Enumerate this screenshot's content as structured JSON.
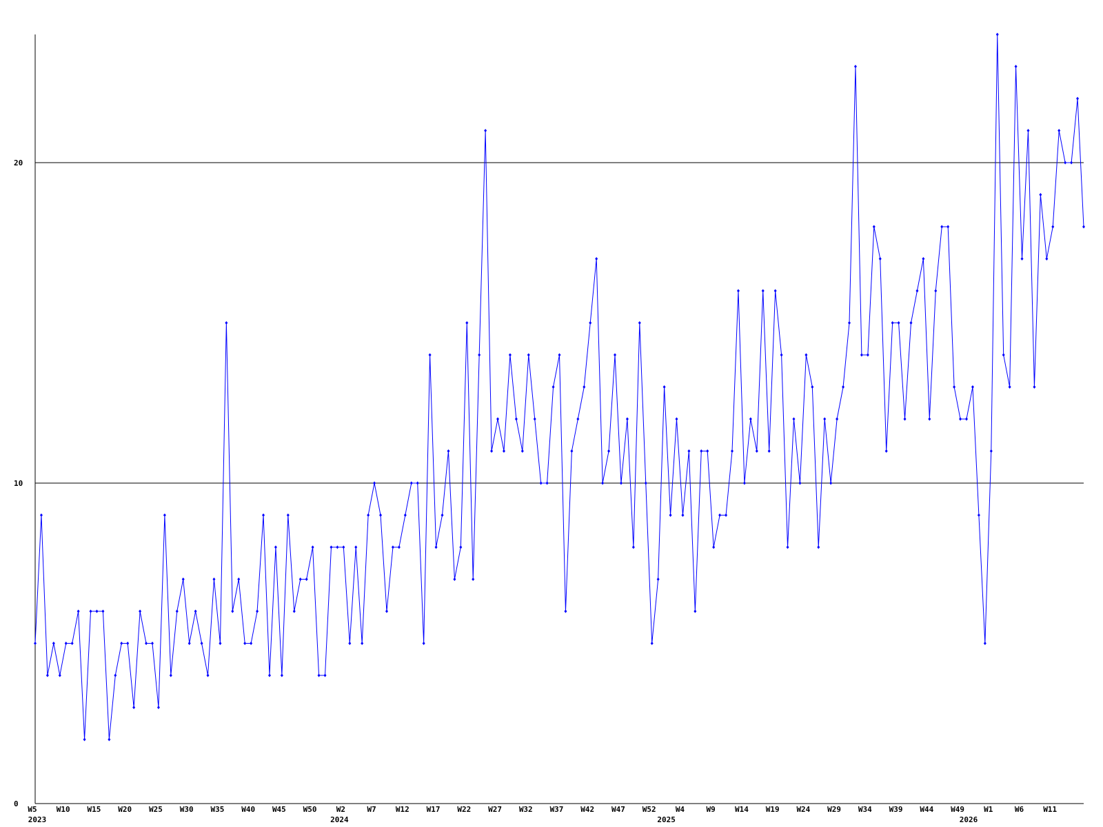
{
  "chart_data": {
    "type": "line",
    "categories": [
      "W5",
      null,
      null,
      null,
      null,
      "W10",
      null,
      null,
      null,
      null,
      "W15",
      null,
      null,
      null,
      null,
      "W20",
      null,
      null,
      null,
      null,
      "W25",
      null,
      null,
      null,
      null,
      "W30",
      null,
      null,
      null,
      null,
      "W35",
      null,
      null,
      null,
      null,
      "W40",
      null,
      null,
      null,
      null,
      "W45",
      null,
      null,
      null,
      null,
      "W50",
      null,
      null,
      null,
      null,
      "W2",
      null,
      null,
      null,
      null,
      "W7",
      null,
      null,
      null,
      null,
      "W12",
      null,
      null,
      null,
      null,
      "W17",
      null,
      null,
      null,
      null,
      "W22",
      null,
      null,
      null,
      null,
      "W27",
      null,
      null,
      null,
      null,
      "W32",
      null,
      null,
      null,
      null,
      "W37",
      null,
      null,
      null,
      null,
      "W42",
      null,
      null,
      null,
      null,
      "W47",
      null,
      null,
      null,
      null,
      "W52",
      null,
      null,
      null,
      null,
      "W4",
      null,
      null,
      null,
      null,
      "W9",
      null,
      null,
      null,
      null,
      "W14",
      null,
      null,
      null,
      null,
      "W19",
      null,
      null,
      null,
      null,
      "W24",
      null,
      null,
      null,
      null,
      "W29",
      null,
      null,
      null,
      null,
      "W34",
      null,
      null,
      null,
      null,
      "W39",
      null,
      null,
      null,
      null,
      "W44",
      null,
      null,
      null,
      null,
      "W49",
      null,
      null,
      null,
      null,
      "W1",
      null,
      null,
      null,
      null,
      "W6",
      null,
      null,
      null,
      null,
      "W11",
      null,
      null,
      null,
      null,
      null
    ],
    "year_labels": [
      "2023",
      null,
      null,
      null,
      null,
      null,
      null,
      null,
      null,
      null,
      null,
      null,
      null,
      null,
      null,
      null,
      null,
      null,
      null,
      null,
      null,
      null,
      null,
      null,
      null,
      null,
      null,
      null,
      null,
      null,
      null,
      null,
      null,
      null,
      null,
      null,
      null,
      null,
      null,
      null,
      null,
      null,
      null,
      null,
      null,
      null,
      null,
      null,
      null,
      "2024",
      null,
      null,
      null,
      null,
      null,
      null,
      null,
      null,
      null,
      null,
      null,
      null,
      null,
      null,
      null,
      null,
      null,
      null,
      null,
      null,
      null,
      null,
      null,
      null,
      null,
      null,
      null,
      null,
      null,
      null,
      null,
      null,
      null,
      null,
      null,
      null,
      null,
      null,
      null,
      null,
      null,
      null,
      null,
      null,
      null,
      null,
      null,
      null,
      null,
      null,
      null,
      null,
      "2025",
      null,
      null,
      null,
      null,
      null,
      null,
      null,
      null,
      null,
      null,
      null,
      null,
      null,
      null,
      null,
      null,
      null,
      null,
      null,
      null,
      null,
      null,
      null,
      null,
      null,
      null,
      null,
      null,
      null,
      null,
      null,
      null,
      null,
      null,
      null,
      null,
      null,
      null,
      null,
      null,
      null,
      null,
      null,
      null,
      null,
      null,
      null,
      null,
      "2026",
      null,
      null,
      null,
      null,
      null,
      null,
      null,
      null,
      null,
      null,
      null,
      null,
      null,
      null,
      null
    ],
    "series": [
      {
        "color": "#0000ff",
        "values": [
          5,
          9,
          4,
          5,
          4,
          5,
          5,
          6,
          2,
          6,
          6,
          6,
          2,
          4,
          5,
          5,
          3,
          6,
          5,
          5,
          3,
          9,
          4,
          6,
          7,
          5,
          6,
          5,
          4,
          7,
          5,
          15,
          6,
          7,
          5,
          5,
          6,
          9,
          4,
          8,
          4,
          9,
          6,
          7,
          7,
          8,
          4,
          4,
          8,
          8,
          8,
          5,
          8,
          5,
          9,
          10,
          9,
          6,
          8,
          8,
          9,
          10,
          10,
          5,
          14,
          8,
          9,
          11,
          7,
          8,
          15,
          7,
          14,
          21,
          11,
          12,
          11,
          14,
          12,
          11,
          14,
          12,
          10,
          10,
          13,
          14,
          6,
          11,
          12,
          13,
          15,
          17,
          10,
          11,
          14,
          10,
          12,
          8,
          15,
          10,
          5,
          7,
          13,
          9,
          12,
          9,
          11,
          6,
          11,
          11,
          8,
          9,
          9,
          11,
          16,
          10,
          12,
          11,
          16,
          11,
          16,
          14,
          8,
          12,
          10,
          14,
          13,
          8,
          12,
          10,
          12,
          13,
          15,
          23,
          14,
          14,
          18,
          17,
          11,
          15,
          15,
          12,
          15,
          16,
          17,
          12,
          16,
          18,
          18,
          13,
          12,
          12,
          13,
          9,
          5,
          11,
          24,
          14,
          13,
          23,
          17,
          21,
          13,
          19,
          17,
          18,
          21,
          20,
          20,
          22,
          18
        ]
      }
    ],
    "ylim": [
      0,
      24
    ],
    "yticks": [
      0,
      10,
      20
    ],
    "grid": true
  }
}
